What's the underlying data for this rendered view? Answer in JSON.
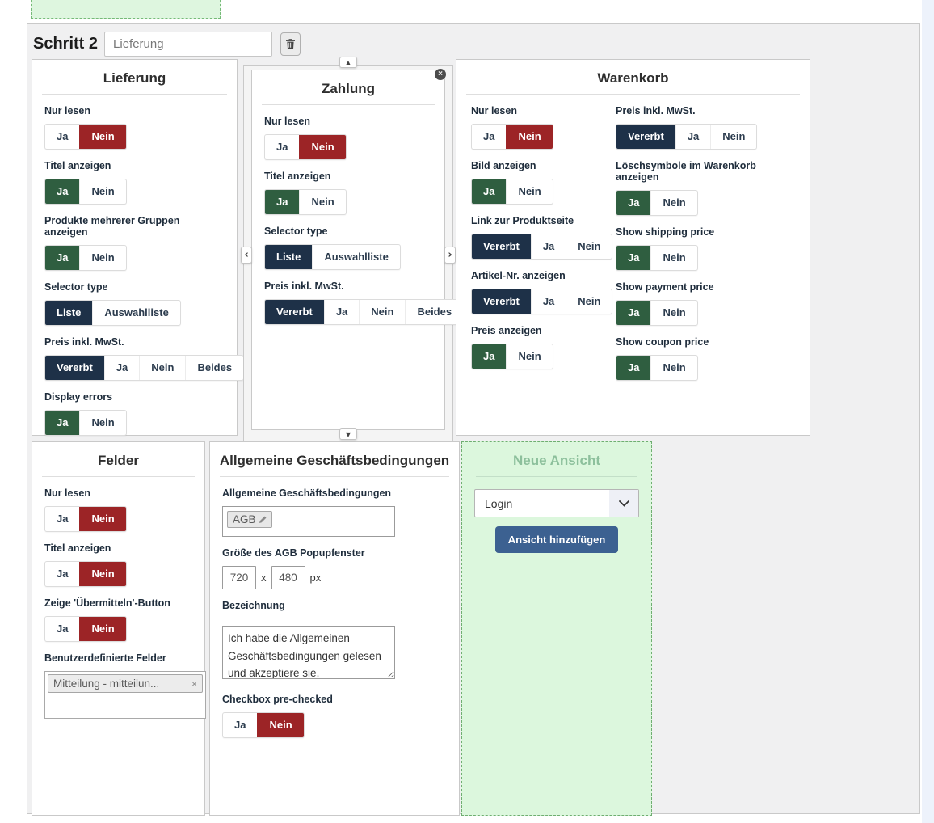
{
  "colors": {
    "selected_red": "#9c2426",
    "selected_green": "#2f5e40",
    "selected_navy": "#1e3148",
    "add_button_blue": "#3c6191",
    "new_view_green_bg": "#dcf7dd",
    "new_view_border": "#6fae71",
    "container_gray": "#f0f0f1"
  },
  "icons": {
    "up_arrow": "▲",
    "down_arrow": "▼",
    "left_arrow": "‹",
    "right_arrow": "›",
    "close": "×",
    "tag_remove": "×"
  },
  "header": {
    "step_label": "Schritt 2",
    "step_name_value": "Lieferung"
  },
  "panels": {
    "lieferung": {
      "title": "Lieferung",
      "fields": [
        {
          "label": "Nur lesen",
          "options": [
            {
              "label": "Ja",
              "state": "none"
            },
            {
              "label": "Nein",
              "state": "red"
            }
          ]
        },
        {
          "label": "Titel anzeigen",
          "options": [
            {
              "label": "Ja",
              "state": "green"
            },
            {
              "label": "Nein",
              "state": "none"
            }
          ]
        },
        {
          "label": "Produkte mehrerer Gruppen anzeigen",
          "options": [
            {
              "label": "Ja",
              "state": "green"
            },
            {
              "label": "Nein",
              "state": "none"
            }
          ]
        },
        {
          "label": "Selector type",
          "options": [
            {
              "label": "Liste",
              "state": "navy"
            },
            {
              "label": "Auswahlliste",
              "state": "none"
            }
          ]
        },
        {
          "label": "Preis inkl. MwSt.",
          "options": [
            {
              "label": "Vererbt",
              "state": "navy"
            },
            {
              "label": "Ja",
              "state": "none"
            },
            {
              "label": "Nein",
              "state": "none"
            },
            {
              "label": "Beides",
              "state": "none"
            }
          ]
        },
        {
          "label": "Display errors",
          "options": [
            {
              "label": "Ja",
              "state": "green"
            },
            {
              "label": "Nein",
              "state": "none"
            }
          ]
        }
      ]
    },
    "zahlung": {
      "title": "Zahlung",
      "fields": [
        {
          "label": "Nur lesen",
          "options": [
            {
              "label": "Ja",
              "state": "none"
            },
            {
              "label": "Nein",
              "state": "red"
            }
          ]
        },
        {
          "label": "Titel anzeigen",
          "options": [
            {
              "label": "Ja",
              "state": "green"
            },
            {
              "label": "Nein",
              "state": "none"
            }
          ]
        },
        {
          "label": "Selector type",
          "options": [
            {
              "label": "Liste",
              "state": "navy"
            },
            {
              "label": "Auswahlliste",
              "state": "none"
            }
          ]
        },
        {
          "label": "Preis inkl. MwSt.",
          "options": [
            {
              "label": "Vererbt",
              "state": "navy"
            },
            {
              "label": "Ja",
              "state": "none"
            },
            {
              "label": "Nein",
              "state": "none"
            },
            {
              "label": "Beides",
              "state": "none"
            }
          ]
        }
      ]
    },
    "warenkorb": {
      "title": "Warenkorb",
      "left_fields": [
        {
          "label": "Nur lesen",
          "options": [
            {
              "label": "Ja",
              "state": "none"
            },
            {
              "label": "Nein",
              "state": "red"
            }
          ]
        },
        {
          "label": "Bild anzeigen",
          "options": [
            {
              "label": "Ja",
              "state": "green"
            },
            {
              "label": "Nein",
              "state": "none"
            }
          ]
        },
        {
          "label": "Link zur Produktseite",
          "options": [
            {
              "label": "Vererbt",
              "state": "navy"
            },
            {
              "label": "Ja",
              "state": "none"
            },
            {
              "label": "Nein",
              "state": "none"
            }
          ]
        },
        {
          "label": "Artikel-Nr. anzeigen",
          "options": [
            {
              "label": "Vererbt",
              "state": "navy"
            },
            {
              "label": "Ja",
              "state": "none"
            },
            {
              "label": "Nein",
              "state": "none"
            }
          ]
        },
        {
          "label": "Preis anzeigen",
          "options": [
            {
              "label": "Ja",
              "state": "green"
            },
            {
              "label": "Nein",
              "state": "none"
            }
          ]
        }
      ],
      "right_fields": [
        {
          "label": "Preis inkl. MwSt.",
          "options": [
            {
              "label": "Vererbt",
              "state": "navy"
            },
            {
              "label": "Ja",
              "state": "none"
            },
            {
              "label": "Nein",
              "state": "none"
            }
          ]
        },
        {
          "label": "Löschsymbole im Warenkorb anzeigen",
          "options": [
            {
              "label": "Ja",
              "state": "green"
            },
            {
              "label": "Nein",
              "state": "none"
            }
          ]
        },
        {
          "label": "Show shipping price",
          "options": [
            {
              "label": "Ja",
              "state": "green"
            },
            {
              "label": "Nein",
              "state": "none"
            }
          ]
        },
        {
          "label": "Show payment price",
          "options": [
            {
              "label": "Ja",
              "state": "green"
            },
            {
              "label": "Nein",
              "state": "none"
            }
          ]
        },
        {
          "label": "Show coupon price",
          "options": [
            {
              "label": "Ja",
              "state": "green"
            },
            {
              "label": "Nein",
              "state": "none"
            }
          ]
        }
      ]
    },
    "felder": {
      "title": "Felder",
      "fields": [
        {
          "label": "Nur lesen",
          "options": [
            {
              "label": "Ja",
              "state": "none"
            },
            {
              "label": "Nein",
              "state": "red"
            }
          ]
        },
        {
          "label": "Titel anzeigen",
          "options": [
            {
              "label": "Ja",
              "state": "none"
            },
            {
              "label": "Nein",
              "state": "red"
            }
          ]
        },
        {
          "label": "Zeige 'Übermitteln'-Button",
          "options": [
            {
              "label": "Ja",
              "state": "none"
            },
            {
              "label": "Nein",
              "state": "red"
            }
          ]
        }
      ],
      "custom_fields_label": "Benutzerdefinierte Felder",
      "custom_fields_tag": "Mitteilung - mitteilun..."
    },
    "agb": {
      "title": "Allgemeine Geschäftsbedingungen",
      "terms_label": "Allgemeine Geschäftsbedingungen",
      "terms_tag": "AGB",
      "popup_size_label": "Größe des AGB Popupfenster",
      "width_value": "720",
      "times_label": "x",
      "height_value": "480",
      "unit_label": "px",
      "caption_label": "Bezeichnung",
      "caption_value": "Ich habe die Allgemeinen Geschäftsbedingungen gelesen und akzeptiere sie.",
      "fields": [
        {
          "label": "Checkbox pre-checked",
          "options": [
            {
              "label": "Ja",
              "state": "none"
            },
            {
              "label": "Nein",
              "state": "red"
            }
          ]
        }
      ]
    },
    "neue_ansicht": {
      "title": "Neue Ansicht",
      "select_value": "Login",
      "add_button_label": "Ansicht hinzufügen"
    }
  }
}
